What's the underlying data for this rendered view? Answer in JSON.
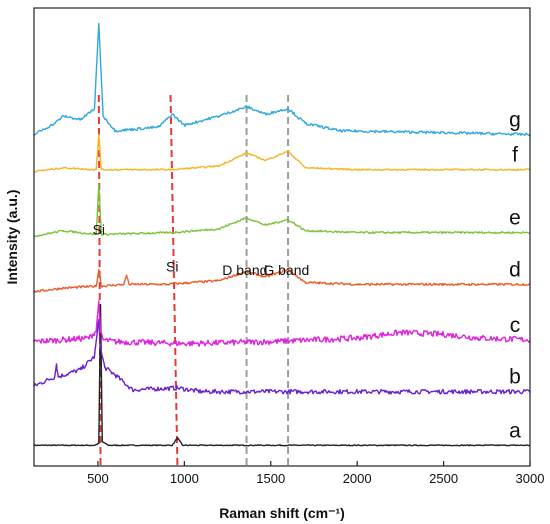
{
  "chart_data": {
    "type": "line",
    "xlabel": "Raman shift (cm⁻¹)",
    "ylabel": "Intensity (a.u.)",
    "xlim": [
      130,
      3000
    ],
    "xticks": [
      500,
      1000,
      1500,
      2000,
      2500,
      3000
    ],
    "y_units": "arbitrary, stacked offsets",
    "grid": false,
    "legend": "none",
    "annotations": [
      {
        "text": "Si",
        "x": 505,
        "y": 116
      },
      {
        "text": "Si",
        "x": 930,
        "y": 96
      },
      {
        "text": "D band",
        "x": 1350,
        "y": 94
      },
      {
        "text": "G band",
        "x": 1590,
        "y": 94
      }
    ],
    "reference_lines": [
      {
        "x_top": 505,
        "x_bottom": 515,
        "color": "#e53935",
        "style": "dashed"
      },
      {
        "x_top": 920,
        "x_bottom": 960,
        "color": "#e53935",
        "style": "dashed"
      },
      {
        "x_top": 1360,
        "x_bottom": 1360,
        "color": "#9e9e9e",
        "style": "dashed"
      },
      {
        "x_top": 1600,
        "x_bottom": 1600,
        "color": "#9e9e9e",
        "style": "dashed"
      }
    ],
    "series": [
      {
        "name": "a",
        "color": "#222222",
        "x": [
          130,
          480,
          505,
          515,
          525,
          560,
          930,
          960,
          990,
          1300,
          1360,
          1600,
          2000,
          2500,
          3000
        ],
        "y": [
          2,
          2,
          3,
          78,
          4,
          2,
          2,
          6,
          2,
          2,
          2,
          2,
          2,
          2,
          2
        ]
      },
      {
        "name": "b",
        "color": "#6a1fd1",
        "x": [
          130,
          250,
          260,
          270,
          400,
          480,
          505,
          515,
          540,
          600,
          700,
          960,
          1100,
          1360,
          1600,
          2000,
          2500,
          3000
        ],
        "y": [
          34,
          39,
          46,
          39,
          43,
          50,
          70,
          54,
          44,
          40,
          32,
          33,
          31,
          31,
          31,
          31,
          31,
          31
        ]
      },
      {
        "name": "c",
        "color": "#e020e0",
        "x": [
          130,
          450,
          490,
          505,
          515,
          530,
          600,
          1000,
          1500,
          2000,
          2250,
          2500,
          2700,
          3000
        ],
        "y": [
          58,
          60,
          64,
          80,
          63,
          59,
          58,
          57,
          58,
          60,
          63,
          62,
          60,
          59
        ]
      },
      {
        "name": "d",
        "color": "#e85d2c",
        "x": [
          130,
          300,
          490,
          505,
          520,
          650,
          665,
          680,
          900,
          1200,
          1360,
          1470,
          1600,
          1700,
          2000,
          2500,
          3000
        ],
        "y": [
          85,
          87,
          88,
          97,
          88,
          89,
          94,
          89,
          89,
          91,
          96,
          93,
          97,
          90,
          89,
          89,
          89
        ]
      },
      {
        "name": "e",
        "color": "#7dc23d",
        "x": [
          130,
          300,
          490,
          505,
          520,
          930,
          1200,
          1360,
          1470,
          1600,
          1700,
          2000,
          2500,
          3000
        ],
        "y": [
          115,
          118,
          116,
          143,
          116,
          117,
          119,
          125,
          121,
          124,
          118,
          117,
          117,
          117
        ]
      },
      {
        "name": "f",
        "color": "#f6b521",
        "x": [
          130,
          300,
          490,
          505,
          520,
          930,
          1200,
          1360,
          1470,
          1600,
          1700,
          2000,
          2500,
          3000
        ],
        "y": [
          150,
          152,
          151,
          170,
          151,
          151,
          153,
          160,
          156,
          161,
          152,
          151,
          151,
          151
        ]
      },
      {
        "name": "g",
        "color": "#2fa8e0",
        "x": [
          130,
          250,
          300,
          400,
          480,
          505,
          530,
          600,
          850,
          930,
          1000,
          1200,
          1360,
          1470,
          1600,
          1700,
          1900,
          2500,
          3000
        ],
        "y": [
          170,
          176,
          180,
          178,
          184,
          230,
          180,
          172,
          174,
          181,
          175,
          180,
          185,
          181,
          184,
          176,
          172,
          171,
          170
        ]
      }
    ]
  }
}
